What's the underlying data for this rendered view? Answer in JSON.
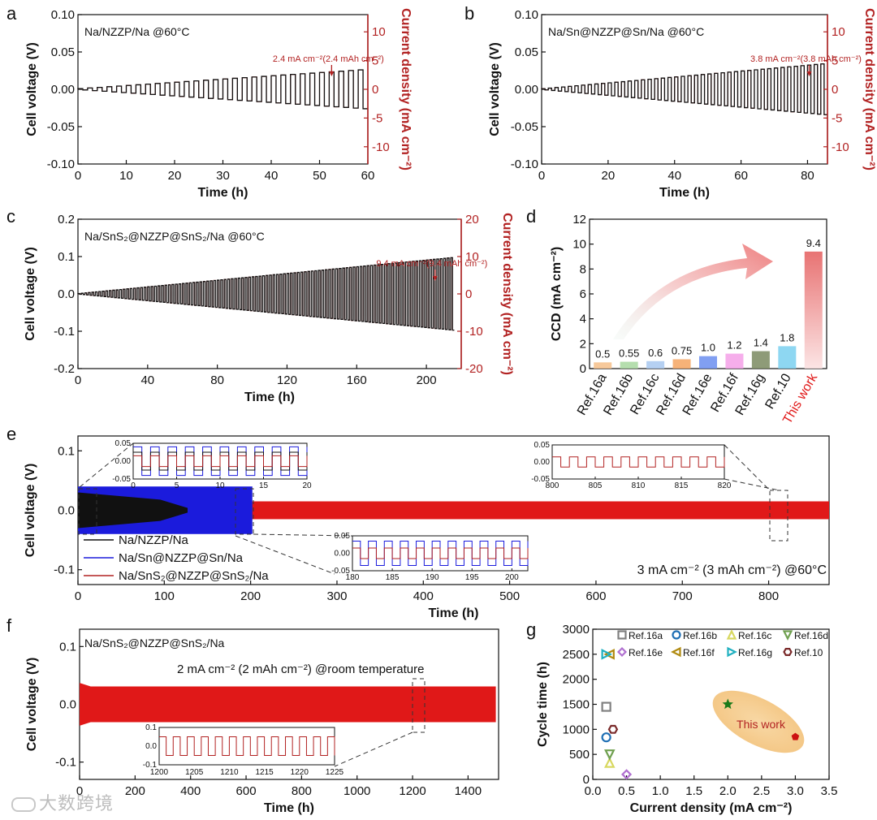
{
  "watermark": "大数跨境",
  "colors": {
    "red": "#e01818",
    "darkred": "#b22222",
    "blue": "#1b1bdc",
    "black": "#111111",
    "salmon": "#d9534f"
  },
  "chart_data": [
    {
      "id": "a",
      "letter": "a",
      "type": "line",
      "label": "Na/NZZP/Na @60°C",
      "annotation": "2.4 mA cm⁻²(2.4 mAh cm⁻²)",
      "annotation_x": 52.5,
      "xlabel": "Time (h)",
      "ylabel": "Cell voltage (V)",
      "y2label": "Current density (mA cm⁻²)",
      "xlim": [
        0,
        60
      ],
      "ylim": [
        -0.1,
        0.1
      ],
      "y2lim": [
        -13,
        13
      ],
      "xticks": [
        0,
        10,
        20,
        30,
        40,
        50,
        60
      ],
      "yticks": [
        -0.1,
        -0.05,
        0.0,
        0.05,
        0.1
      ],
      "yticklabels": [
        "-0.10",
        "-0.05",
        "0.00",
        "0.05",
        "0.10"
      ],
      "y2ticks": [
        -10,
        -5,
        0,
        5,
        10
      ],
      "series": [
        {
          "name": "Cell voltage",
          "color": "black",
          "t_end": 60,
          "v_end": 0.026,
          "cycles": 30
        },
        {
          "name": "Current density",
          "color": "red",
          "t_end": 60,
          "v_end": 0.026,
          "cycles": 30
        }
      ]
    },
    {
      "id": "b",
      "letter": "b",
      "type": "line",
      "label": "Na/Sn@NZZP@Sn/Na @60°C",
      "annotation": "3.8 mA cm⁻²(3.8 mAh cm⁻²)",
      "annotation_x": 80.5,
      "xlabel": "Time (h)",
      "ylabel": "Cell voltage (V)",
      "y2label": "Current density (mA cm⁻²)",
      "xlim": [
        0,
        86
      ],
      "ylim": [
        -0.1,
        0.1
      ],
      "y2lim": [
        -13,
        13
      ],
      "xticks": [
        0,
        20,
        40,
        60,
        80
      ],
      "yticks": [
        -0.1,
        -0.05,
        0.0,
        0.05,
        0.1
      ],
      "yticklabels": [
        "-0.10",
        "-0.05",
        "0.00",
        "0.05",
        "0.10"
      ],
      "y2ticks": [
        -10,
        -5,
        0,
        5,
        10
      ],
      "series": [
        {
          "name": "Cell voltage",
          "color": "black",
          "t_end": 86,
          "v_end": 0.034,
          "cycles": 43
        },
        {
          "name": "Current density",
          "color": "red",
          "t_end": 86,
          "v_end": 0.034,
          "cycles": 43
        }
      ]
    },
    {
      "id": "c",
      "letter": "c",
      "type": "line",
      "label": "Na/SnS₂@NZZP@SnS₂/Na @60°C",
      "annotation": "9.4 mA cm⁻²(9.4 mAh cm⁻²)",
      "annotation_x": 205,
      "xlabel": "Time (h)",
      "ylabel": "Cell voltage (V)",
      "y2label": "Current density (mA cm⁻²)",
      "xlim": [
        0,
        220
      ],
      "ylim": [
        -0.2,
        0.2
      ],
      "y2lim": [
        -20,
        20
      ],
      "xticks": [
        0,
        40,
        80,
        120,
        160,
        200
      ],
      "yticks": [
        -0.2,
        -0.1,
        0.0,
        0.1,
        0.2
      ],
      "yticklabels": [
        "-0.2",
        "-0.1",
        "0.0",
        "0.1",
        "0.2"
      ],
      "y2ticks": [
        -20,
        -10,
        0,
        10,
        20
      ],
      "series": [
        {
          "name": "Cell voltage",
          "color": "black",
          "t_end": 216,
          "v_end": 0.097,
          "cycles": 108
        },
        {
          "name": "Current density",
          "color": "red",
          "t_end": 216,
          "v_end": 0.097,
          "cycles": 108
        }
      ]
    },
    {
      "id": "d",
      "letter": "d",
      "type": "bar",
      "ylabel": "CCD (mA cm⁻²)",
      "ylim": [
        0,
        12
      ],
      "yticks": [
        0,
        2,
        4,
        6,
        8,
        10,
        12
      ],
      "categories": [
        "Ref.16a",
        "Ref.16b",
        "Ref.16c",
        "Ref.16d",
        "Ref.16e",
        "Ref.16f",
        "Ref.16g",
        "Ref.10",
        "This work"
      ],
      "values": [
        0.5,
        0.55,
        0.6,
        0.75,
        1.0,
        1.2,
        1.4,
        1.8,
        9.4
      ],
      "value_labels": [
        "0.5",
        "0.55",
        "0.6",
        "0.75",
        "1.0",
        "1.2",
        "1.4",
        "1.8",
        "9.4"
      ],
      "bar_colors": [
        "#f6c08a",
        "#a8d8a0",
        "#a8c8f0",
        "#f4a460",
        "#6b8ef0",
        "#f4a0e8",
        "#7a8a60",
        "#7ad0f0",
        "#f07a7a"
      ]
    },
    {
      "id": "e",
      "letter": "e",
      "type": "line",
      "xlabel": "Time (h)",
      "ylabel": "Cell voltage (V)",
      "xlim": [
        0,
        870
      ],
      "ylim": [
        -0.125,
        0.125
      ],
      "xticks": [
        0,
        100,
        200,
        300,
        400,
        500,
        600,
        700,
        800
      ],
      "yticks": [
        -0.1,
        0.0,
        0.1
      ],
      "yticklabels": [
        "-0.1",
        "0.0",
        "0.1"
      ],
      "condition": "3 mA cm⁻² (3 mAh cm⁻²) @60°C",
      "series": [
        {
          "name": "Na/NZZP/Na",
          "color": "black",
          "t_end": 127,
          "amplitude": 0.03
        },
        {
          "name": "Na/Sn@NZZP@Sn/Na",
          "color": "blue",
          "t_end": 202,
          "amplitude": 0.04
        },
        {
          "name": "Na/SnS₂@NZZP@SnS₂/Na",
          "color": "red",
          "t_end": 870,
          "amplitude": 0.015
        }
      ],
      "insets": [
        {
          "xlim": [
            0,
            20
          ],
          "xticks": [
            0,
            5,
            10,
            15,
            20
          ],
          "ylim": [
            -0.05,
            0.05
          ],
          "yticks": [
            -0.05,
            0.0,
            0.05
          ],
          "yticklabels": [
            "-0.05",
            "0.00",
            "0.05"
          ]
        },
        {
          "xlim": [
            800,
            820
          ],
          "xticks": [
            800,
            805,
            810,
            815,
            820
          ],
          "ylim": [
            -0.05,
            0.05
          ],
          "yticks": [
            -0.05,
            0.0,
            0.05
          ],
          "yticklabels": [
            "-0.05",
            "0.00",
            "0.05"
          ]
        },
        {
          "xlim": [
            180,
            202
          ],
          "xticks": [
            180,
            185,
            190,
            195,
            200
          ],
          "ylim": [
            -0.05,
            0.05
          ],
          "yticks": [
            -0.05,
            0.0,
            0.05
          ],
          "yticklabels": [
            "-0.05",
            "0.00",
            "0.05"
          ]
        }
      ]
    },
    {
      "id": "f",
      "letter": "f",
      "type": "line",
      "label": "Na/SnS₂@NZZP@SnS₂/Na",
      "condition": "2 mA cm⁻² (2 mAh cm⁻²) @room temperature",
      "xlabel": "Time (h)",
      "ylabel": "Cell voltage (V)",
      "xlim": [
        0,
        1510
      ],
      "ylim": [
        -0.13,
        0.13
      ],
      "xticks": [
        0,
        200,
        400,
        600,
        800,
        1000,
        1200,
        1400
      ],
      "yticks": [
        -0.1,
        0.0,
        0.1
      ],
      "yticklabels": [
        "-0.1",
        "0.0",
        "0.1"
      ],
      "series": [
        {
          "name": "Na/SnS₂@NZZP@SnS₂/Na",
          "color": "red",
          "t_end": 1500,
          "amplitude": 0.03
        }
      ],
      "inset": {
        "xlim": [
          1200,
          1225
        ],
        "xticks": [
          1200,
          1205,
          1210,
          1215,
          1220,
          1225
        ],
        "ylim": [
          -0.1,
          0.1
        ],
        "yticks": [
          -0.1,
          0.0,
          0.1
        ],
        "yticklabels": [
          "-0.1",
          "0.0",
          "0.1"
        ]
      }
    },
    {
      "id": "g",
      "letter": "g",
      "type": "scatter",
      "xlabel": "Current density (mA cm⁻²)",
      "ylabel": "Cycle time (h)",
      "xlim": [
        0,
        3.5
      ],
      "ylim": [
        0,
        3000
      ],
      "xticks": [
        0.0,
        0.5,
        1.0,
        1.5,
        2.0,
        2.5,
        3.0,
        3.5
      ],
      "xticklabels": [
        "0.0",
        "0.5",
        "1.0",
        "1.5",
        "2.0",
        "2.5",
        "3.0",
        "3.5"
      ],
      "yticks": [
        0,
        500,
        1000,
        1500,
        2000,
        2500,
        3000
      ],
      "highlight": "This work",
      "series": [
        {
          "name": "Ref.16a",
          "marker": "square",
          "color": "#808080",
          "points": [
            [
              0.2,
              1450
            ]
          ]
        },
        {
          "name": "Ref.16b",
          "marker": "circle",
          "color": "#1f6fb4",
          "points": [
            [
              0.2,
              840
            ]
          ]
        },
        {
          "name": "Ref.16c",
          "marker": "triangle-up",
          "color": "#d8d860",
          "points": [
            [
              0.25,
              330
            ]
          ]
        },
        {
          "name": "Ref.16d",
          "marker": "triangle-down",
          "color": "#70a050",
          "points": [
            [
              0.25,
              500
            ]
          ]
        },
        {
          "name": "Ref.16e",
          "marker": "diamond",
          "color": "#b070d0",
          "points": [
            [
              0.5,
              100
            ]
          ]
        },
        {
          "name": "Ref.16f",
          "marker": "triangle-left",
          "color": "#b08a10",
          "points": [
            [
              0.25,
              2500
            ]
          ]
        },
        {
          "name": "Ref.16g",
          "marker": "triangle-right",
          "color": "#20b0c0",
          "points": [
            [
              0.2,
              2500
            ]
          ]
        },
        {
          "name": "Ref.10",
          "marker": "hexagon",
          "color": "#7a2a2a",
          "points": [
            [
              0.3,
              1000
            ]
          ]
        },
        {
          "name": "This work (star)",
          "marker": "star",
          "color": "#1a7a1a",
          "points": [
            [
              2.0,
              1500
            ]
          ]
        },
        {
          "name": "This work (pentagon)",
          "marker": "pentagon",
          "color": "#cc1111",
          "points": [
            [
              3.0,
              850
            ]
          ]
        }
      ]
    }
  ]
}
